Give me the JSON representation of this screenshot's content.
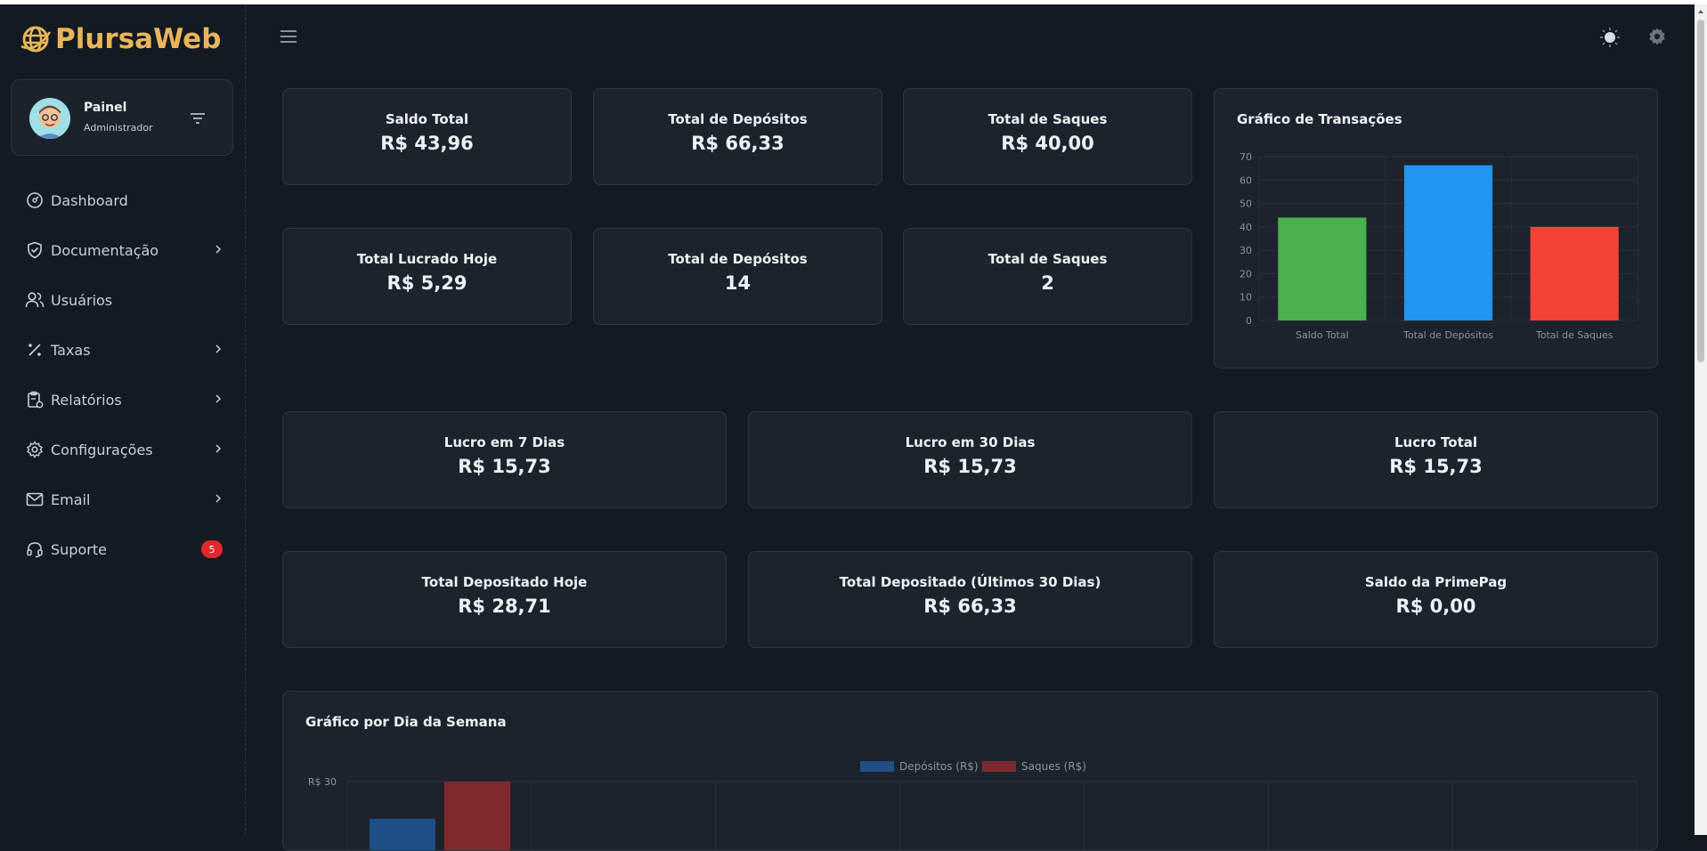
{
  "app": {
    "name": "PlursaWeb"
  },
  "profile": {
    "name": "Painel",
    "role": "Administrador"
  },
  "nav": [
    {
      "label": "Dashboard",
      "icon": "dashboard-icon",
      "chevron": false
    },
    {
      "label": "Documentação",
      "icon": "shield-check-icon",
      "chevron": true
    },
    {
      "label": "Usuários",
      "icon": "users-icon",
      "chevron": false
    },
    {
      "label": "Taxas",
      "icon": "percent-icon",
      "chevron": true
    },
    {
      "label": "Relatórios",
      "icon": "clipboard-icon",
      "chevron": true
    },
    {
      "label": "Configurações",
      "icon": "gear-icon",
      "chevron": true
    },
    {
      "label": "Email",
      "icon": "mail-icon",
      "chevron": true
    },
    {
      "label": "Suporte",
      "icon": "headset-icon",
      "chevron": false,
      "badge": "5"
    }
  ],
  "stats": {
    "saldo_total": {
      "title": "Saldo Total",
      "value": "R$ 43,96"
    },
    "total_depositos": {
      "title": "Total de Depósitos",
      "value": "R$ 66,33"
    },
    "total_saques": {
      "title": "Total de Saques",
      "value": "R$ 40,00"
    },
    "lucrado_hoje": {
      "title": "Total Lucrado Hoje",
      "value": "R$ 5,29"
    },
    "qtd_depositos": {
      "title": "Total de Depósitos",
      "value": "14"
    },
    "qtd_saques": {
      "title": "Total de Saques",
      "value": "2"
    },
    "lucro_7": {
      "title": "Lucro em 7 Dias",
      "value": "R$ 15,73"
    },
    "lucro_30": {
      "title": "Lucro em 30 Dias",
      "value": "R$ 15,73"
    },
    "lucro_total": {
      "title": "Lucro Total",
      "value": "R$ 15,73"
    },
    "depositado_hoje": {
      "title": "Total Depositado Hoje",
      "value": "R$ 28,71"
    },
    "depositado_30": {
      "title": "Total Depositado (Últimos 30 Dias)",
      "value": "R$ 66,33"
    },
    "saldo_primepag": {
      "title": "Saldo da PrimePag",
      "value": "R$ 0,00"
    }
  },
  "colors": {
    "accent": "#e9b55a",
    "green": "#4caf50",
    "blue": "#2196f3",
    "red": "#f44336",
    "deposit_blue": "#1f4f86",
    "saque_red": "#7f2a2e"
  },
  "chart_data": [
    {
      "type": "bar",
      "title": "Gráfico de Transações",
      "categories": [
        "Saldo Total",
        "Total de Depósitos",
        "Total de Saques"
      ],
      "values": [
        43.96,
        66.33,
        40.0
      ],
      "colors": [
        "#4caf50",
        "#2196f3",
        "#f44336"
      ],
      "ylim": [
        0,
        70
      ],
      "yticks": [
        0,
        10,
        20,
        30,
        40,
        50,
        60,
        70
      ],
      "grid": true
    },
    {
      "type": "bar",
      "title": "Gráfico por Dia da Semana",
      "legend": [
        "Depósitos (R$)",
        "Saques (R$)"
      ],
      "legend_position": "top",
      "visible_ytick": "R$ 30",
      "series": [
        {
          "name": "Depósitos (R$)",
          "values": [
            25.5
          ]
        },
        {
          "name": "Saques (R$)",
          "values": [
            30
          ]
        }
      ],
      "grid": true
    }
  ]
}
